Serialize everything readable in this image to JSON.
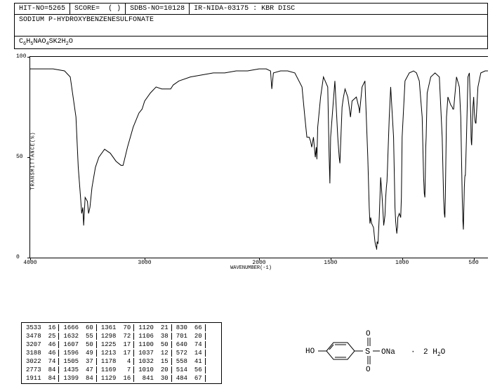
{
  "header": {
    "hit_no_label": "HIT-NO=",
    "hit_no": "5265",
    "score_label": "SCORE=",
    "score": "(   )",
    "sdbs_label": "SDBS-NO=",
    "sdbs_no": "10128",
    "method": "IR-NIDA-03175 : KBR DISC"
  },
  "compound_name": "SODIUM P-HYDROXYBENZENESULFONATE",
  "formula_parts": [
    "C",
    "6",
    "H",
    "5",
    "NAO",
    "4",
    "SK2H",
    "2",
    "O"
  ],
  "chart": {
    "type": "line",
    "xlim": [
      4000,
      400
    ],
    "ylim": [
      0,
      100
    ],
    "xticks": [
      4000,
      3000,
      2000,
      1500,
      1000,
      500
    ],
    "yticks": [
      0,
      50,
      100
    ],
    "xlabel": "WAVENUMBER(-1)",
    "ylabel": "TRANSMITTANCE(%)",
    "line_color": "#000000",
    "background_color": "#ffffff",
    "border_color": "#000000",
    "line_width": 1,
    "spectrum": [
      [
        4000,
        94
      ],
      [
        3900,
        94
      ],
      [
        3800,
        94
      ],
      [
        3700,
        93
      ],
      [
        3650,
        90
      ],
      [
        3600,
        70
      ],
      [
        3580,
        45
      ],
      [
        3560,
        30
      ],
      [
        3550,
        22
      ],
      [
        3540,
        25
      ],
      [
        3533,
        16
      ],
      [
        3520,
        30
      ],
      [
        3500,
        28
      ],
      [
        3490,
        22
      ],
      [
        3478,
        25
      ],
      [
        3460,
        35
      ],
      [
        3430,
        45
      ],
      [
        3400,
        50
      ],
      [
        3350,
        54
      ],
      [
        3300,
        52
      ],
      [
        3250,
        48
      ],
      [
        3207,
        46
      ],
      [
        3188,
        46
      ],
      [
        3150,
        55
      ],
      [
        3100,
        65
      ],
      [
        3050,
        72
      ],
      [
        3022,
        74
      ],
      [
        3000,
        78
      ],
      [
        2950,
        82
      ],
      [
        2900,
        85
      ],
      [
        2850,
        84
      ],
      [
        2800,
        84
      ],
      [
        2773,
        84
      ],
      [
        2750,
        86
      ],
      [
        2700,
        88
      ],
      [
        2600,
        90
      ],
      [
        2500,
        91
      ],
      [
        2400,
        92
      ],
      [
        2300,
        92
      ],
      [
        2200,
        93
      ],
      [
        2100,
        93
      ],
      [
        2000,
        94
      ],
      [
        1950,
        94
      ],
      [
        1920,
        93
      ],
      [
        1911,
        84
      ],
      [
        1900,
        92
      ],
      [
        1850,
        93
      ],
      [
        1800,
        93
      ],
      [
        1750,
        92
      ],
      [
        1700,
        85
      ],
      [
        1680,
        70
      ],
      [
        1666,
        60
      ],
      [
        1650,
        60
      ],
      [
        1640,
        58
      ],
      [
        1632,
        55
      ],
      [
        1620,
        60
      ],
      [
        1607,
        50
      ],
      [
        1600,
        55
      ],
      [
        1596,
        49
      ],
      [
        1590,
        65
      ],
      [
        1570,
        80
      ],
      [
        1550,
        90
      ],
      [
        1520,
        85
      ],
      [
        1510,
        50
      ],
      [
        1505,
        37
      ],
      [
        1500,
        60
      ],
      [
        1470,
        88
      ],
      [
        1450,
        60
      ],
      [
        1440,
        50
      ],
      [
        1435,
        47
      ],
      [
        1420,
        75
      ],
      [
        1410,
        80
      ],
      [
        1399,
        84
      ],
      [
        1380,
        80
      ],
      [
        1370,
        75
      ],
      [
        1361,
        70
      ],
      [
        1350,
        78
      ],
      [
        1320,
        80
      ],
      [
        1300,
        74
      ],
      [
        1298,
        72
      ],
      [
        1280,
        85
      ],
      [
        1260,
        88
      ],
      [
        1240,
        50
      ],
      [
        1230,
        25
      ],
      [
        1225,
        17
      ],
      [
        1220,
        20
      ],
      [
        1215,
        18
      ],
      [
        1213,
        17
      ],
      [
        1200,
        15
      ],
      [
        1190,
        8
      ],
      [
        1185,
        6
      ],
      [
        1180,
        5
      ],
      [
        1178,
        4
      ],
      [
        1175,
        8
      ],
      [
        1170,
        7
      ],
      [
        1169,
        7
      ],
      [
        1160,
        20
      ],
      [
        1150,
        40
      ],
      [
        1140,
        30
      ],
      [
        1130,
        18
      ],
      [
        1129,
        16
      ],
      [
        1125,
        18
      ],
      [
        1120,
        21
      ],
      [
        1115,
        30
      ],
      [
        1110,
        35
      ],
      [
        1106,
        38
      ],
      [
        1102,
        45
      ],
      [
        1100,
        50
      ],
      [
        1090,
        70
      ],
      [
        1080,
        85
      ],
      [
        1060,
        60
      ],
      [
        1050,
        25
      ],
      [
        1045,
        18
      ],
      [
        1040,
        14
      ],
      [
        1037,
        12
      ],
      [
        1035,
        14
      ],
      [
        1032,
        15
      ],
      [
        1030,
        20
      ],
      [
        1020,
        22
      ],
      [
        1015,
        21
      ],
      [
        1010,
        20
      ],
      [
        1005,
        30
      ],
      [
        1000,
        60
      ],
      [
        980,
        88
      ],
      [
        950,
        92
      ],
      [
        920,
        93
      ],
      [
        900,
        92
      ],
      [
        880,
        88
      ],
      [
        860,
        70
      ],
      [
        850,
        40
      ],
      [
        845,
        32
      ],
      [
        841,
        30
      ],
      [
        838,
        40
      ],
      [
        835,
        55
      ],
      [
        832,
        60
      ],
      [
        830,
        66
      ],
      [
        825,
        82
      ],
      [
        800,
        90
      ],
      [
        770,
        92
      ],
      [
        740,
        90
      ],
      [
        720,
        60
      ],
      [
        710,
        30
      ],
      [
        705,
        22
      ],
      [
        701,
        20
      ],
      [
        698,
        30
      ],
      [
        690,
        70
      ],
      [
        680,
        80
      ],
      [
        670,
        78
      ],
      [
        660,
        76
      ],
      [
        650,
        75
      ],
      [
        645,
        74
      ],
      [
        640,
        74
      ],
      [
        635,
        78
      ],
      [
        620,
        90
      ],
      [
        600,
        85
      ],
      [
        590,
        70
      ],
      [
        585,
        50
      ],
      [
        580,
        30
      ],
      [
        575,
        18
      ],
      [
        572,
        14
      ],
      [
        570,
        20
      ],
      [
        565,
        35
      ],
      [
        562,
        40
      ],
      [
        560,
        41
      ],
      [
        558,
        41
      ],
      [
        555,
        48
      ],
      [
        550,
        60
      ],
      [
        540,
        90
      ],
      [
        530,
        92
      ],
      [
        520,
        70
      ],
      [
        518,
        60
      ],
      [
        516,
        57
      ],
      [
        514,
        56
      ],
      [
        512,
        60
      ],
      [
        505,
        75
      ],
      [
        500,
        80
      ],
      [
        495,
        72
      ],
      [
        490,
        68
      ],
      [
        487,
        67
      ],
      [
        484,
        67
      ],
      [
        480,
        72
      ],
      [
        470,
        85
      ],
      [
        450,
        92
      ],
      [
        420,
        93
      ],
      [
        400,
        93
      ]
    ]
  },
  "peaks": {
    "columns": 6,
    "rows": 7,
    "data": [
      [
        3533,
        16,
        1666,
        60,
        1361,
        70,
        1120,
        21,
        830,
        66,
        null,
        null
      ],
      [
        3478,
        25,
        1632,
        55,
        1298,
        72,
        1106,
        38,
        701,
        20,
        null,
        null
      ],
      [
        3207,
        46,
        1607,
        50,
        1225,
        17,
        1100,
        50,
        640,
        74,
        null,
        null
      ],
      [
        3188,
        46,
        1596,
        49,
        1213,
        17,
        1037,
        12,
        572,
        14,
        null,
        null
      ],
      [
        3022,
        74,
        1505,
        37,
        1178,
        4,
        1032,
        15,
        558,
        41,
        null,
        null
      ],
      [
        2773,
        84,
        1435,
        47,
        1169,
        7,
        1010,
        20,
        514,
        56,
        null,
        null
      ],
      [
        1911,
        84,
        1399,
        84,
        1129,
        16,
        841,
        30,
        484,
        67,
        null,
        null
      ]
    ]
  },
  "structure": {
    "label_left": "HO",
    "label_right": "ONa",
    "hydrate": "2 H",
    "hydrate_sub": "2",
    "hydrate_end": "O",
    "dot": "·"
  }
}
